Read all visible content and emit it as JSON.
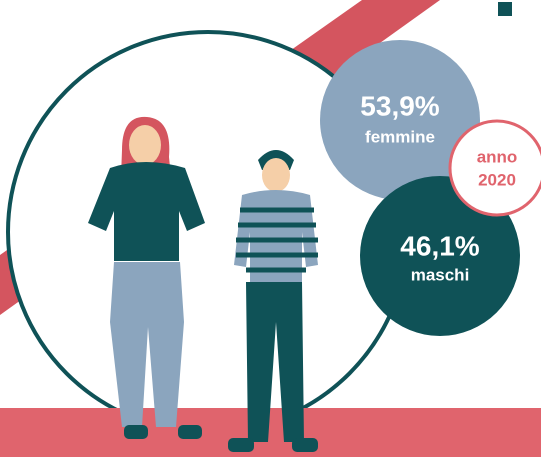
{
  "stats": [
    {
      "value": "53,9%",
      "label": "femmine"
    },
    {
      "value": "46,1%",
      "label": "maschi"
    }
  ],
  "badge": {
    "label": "anno",
    "year": "2020"
  }
}
